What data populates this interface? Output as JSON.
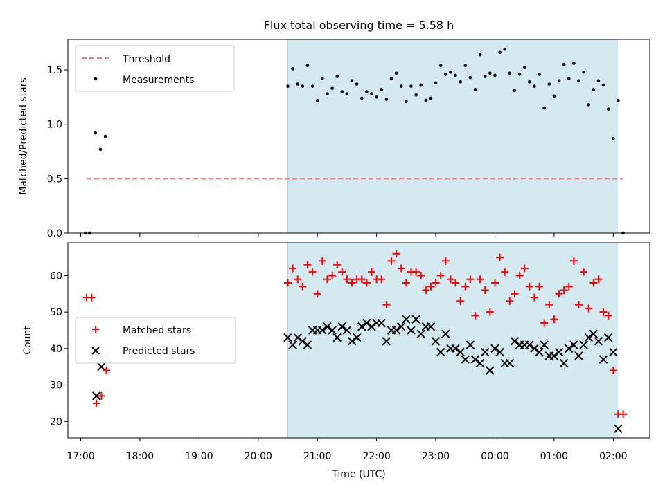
{
  "title": "Flux total observing time = 5.58 h",
  "xlabel": "Time (UTC)",
  "xticks": [
    "17:00",
    "18:00",
    "19:00",
    "20:00",
    "21:00",
    "22:00",
    "23:00",
    "00:00",
    "01:00",
    "02:00"
  ],
  "colors": {
    "shade": "#d4eaf0",
    "shade_edge": "#a9d7de",
    "threshold": "#f08080",
    "measurements": "#000000",
    "matched": "#ff0000",
    "predicted": "#000000"
  },
  "chart_data": [
    {
      "type": "scatter",
      "ylabel": "Matched/Predicted stars",
      "xlim": [
        "16:47",
        "02:37"
      ],
      "ylim": [
        0,
        1.78
      ],
      "yticks": [
        "0.0",
        "0.5",
        "1.0",
        "1.5"
      ],
      "shaded_region": [
        "20:30",
        "02:04"
      ],
      "legend": {
        "position": "top-left",
        "threshold_label": "Threshold",
        "measurements_label": "Measurements"
      },
      "threshold": {
        "y": 0.5,
        "x": [
          "17:06",
          "02:10"
        ]
      },
      "series": [
        {
          "name": "Measurements",
          "points": [
            [
              "17:05",
              0.0
            ],
            [
              "17:09",
              0.0
            ],
            [
              "17:15",
              0.92
            ],
            [
              "17:20",
              0.77
            ],
            [
              "17:25",
              0.89
            ],
            [
              "20:30",
              1.35
            ],
            [
              "20:35",
              1.51
            ],
            [
              "20:40",
              1.37
            ],
            [
              "20:45",
              1.35
            ],
            [
              "20:50",
              1.54
            ],
            [
              "20:55",
              1.35
            ],
            [
              "21:00",
              1.22
            ],
            [
              "21:05",
              1.42
            ],
            [
              "21:10",
              1.28
            ],
            [
              "21:15",
              1.33
            ],
            [
              "21:20",
              1.44
            ],
            [
              "21:25",
              1.3
            ],
            [
              "21:30",
              1.28
            ],
            [
              "21:35",
              1.4
            ],
            [
              "21:40",
              1.37
            ],
            [
              "21:45",
              1.24
            ],
            [
              "21:50",
              1.3
            ],
            [
              "21:55",
              1.28
            ],
            [
              "22:00",
              1.25
            ],
            [
              "22:05",
              1.32
            ],
            [
              "22:10",
              1.23
            ],
            [
              "22:15",
              1.42
            ],
            [
              "22:20",
              1.47
            ],
            [
              "22:25",
              1.35
            ],
            [
              "22:30",
              1.21
            ],
            [
              "22:35",
              1.35
            ],
            [
              "22:40",
              1.27
            ],
            [
              "22:45",
              1.36
            ],
            [
              "22:50",
              1.22
            ],
            [
              "22:55",
              1.24
            ],
            [
              "23:00",
              1.38
            ],
            [
              "23:05",
              1.54
            ],
            [
              "23:10",
              1.46
            ],
            [
              "23:15",
              1.48
            ],
            [
              "23:20",
              1.45
            ],
            [
              "23:25",
              1.39
            ],
            [
              "23:30",
              1.54
            ],
            [
              "23:35",
              1.43
            ],
            [
              "23:40",
              1.32
            ],
            [
              "23:45",
              1.64
            ],
            [
              "23:50",
              1.44
            ],
            [
              "23:55",
              1.47
            ],
            [
              "00:00",
              1.45
            ],
            [
              "00:05",
              1.66
            ],
            [
              "00:10",
              1.69
            ],
            [
              "00:15",
              1.47
            ],
            [
              "00:20",
              1.31
            ],
            [
              "00:25",
              1.46
            ],
            [
              "00:30",
              1.52
            ],
            [
              "00:35",
              1.39
            ],
            [
              "00:40",
              1.35
            ],
            [
              "00:45",
              1.46
            ],
            [
              "00:50",
              1.15
            ],
            [
              "00:55",
              1.37
            ],
            [
              "01:00",
              1.26
            ],
            [
              "01:05",
              1.4
            ],
            [
              "01:10",
              1.55
            ],
            [
              "01:15",
              1.42
            ],
            [
              "01:20",
              1.56
            ],
            [
              "01:25",
              1.4
            ],
            [
              "01:30",
              1.48
            ],
            [
              "01:35",
              1.18
            ],
            [
              "01:40",
              1.32
            ],
            [
              "01:45",
              1.4
            ],
            [
              "01:50",
              1.36
            ],
            [
              "01:55",
              1.14
            ],
            [
              "02:00",
              0.87
            ],
            [
              "02:05",
              1.22
            ],
            [
              "02:10",
              0.0
            ]
          ]
        }
      ]
    },
    {
      "type": "scatter",
      "ylabel": "Count",
      "xlim": [
        "16:47",
        "02:37"
      ],
      "ylim": [
        15.5,
        69
      ],
      "yticks": [
        "20",
        "30",
        "40",
        "50",
        "60"
      ],
      "shaded_region": [
        "20:30",
        "02:04"
      ],
      "legend": {
        "position": "center-left"
      },
      "series": [
        {
          "name": "Matched stars",
          "points": [
            [
              "17:06",
              54
            ],
            [
              "17:11",
              54
            ],
            [
              "17:16",
              25
            ],
            [
              "17:21",
              27
            ],
            [
              "17:26",
              34
            ],
            [
              "20:30",
              58
            ],
            [
              "20:35",
              62
            ],
            [
              "20:40",
              59
            ],
            [
              "20:45",
              57
            ],
            [
              "20:50",
              63
            ],
            [
              "20:55",
              61
            ],
            [
              "21:00",
              55
            ],
            [
              "21:05",
              64
            ],
            [
              "21:10",
              59
            ],
            [
              "21:15",
              60
            ],
            [
              "21:20",
              63
            ],
            [
              "21:25",
              61
            ],
            [
              "21:30",
              59
            ],
            [
              "21:35",
              58
            ],
            [
              "21:40",
              59
            ],
            [
              "21:45",
              59
            ],
            [
              "21:50",
              58
            ],
            [
              "21:55",
              61
            ],
            [
              "22:00",
              59
            ],
            [
              "22:05",
              59
            ],
            [
              "22:10",
              52
            ],
            [
              "22:15",
              64
            ],
            [
              "22:20",
              66
            ],
            [
              "22:25",
              62
            ],
            [
              "22:30",
              58
            ],
            [
              "22:35",
              61
            ],
            [
              "22:40",
              61
            ],
            [
              "22:45",
              60
            ],
            [
              "22:50",
              56
            ],
            [
              "22:55",
              57
            ],
            [
              "23:00",
              58
            ],
            [
              "23:05",
              60
            ],
            [
              "23:10",
              64
            ],
            [
              "23:15",
              59
            ],
            [
              "23:20",
              58
            ],
            [
              "23:25",
              53
            ],
            [
              "23:30",
              57
            ],
            [
              "23:35",
              59
            ],
            [
              "23:40",
              49
            ],
            [
              "23:45",
              59
            ],
            [
              "23:50",
              56
            ],
            [
              "23:55",
              50
            ],
            [
              "00:00",
              58
            ],
            [
              "00:05",
              65
            ],
            [
              "00:10",
              61
            ],
            [
              "00:15",
              53
            ],
            [
              "00:20",
              55
            ],
            [
              "00:25",
              60
            ],
            [
              "00:30",
              62
            ],
            [
              "00:35",
              57
            ],
            [
              "00:40",
              54
            ],
            [
              "00:45",
              57
            ],
            [
              "00:50",
              47
            ],
            [
              "00:55",
              52
            ],
            [
              "01:00",
              48
            ],
            [
              "01:05",
              55
            ],
            [
              "01:10",
              56
            ],
            [
              "01:15",
              57
            ],
            [
              "01:20",
              64
            ],
            [
              "01:25",
              52
            ],
            [
              "01:30",
              61
            ],
            [
              "01:35",
              51
            ],
            [
              "01:40",
              58
            ],
            [
              "01:45",
              59
            ],
            [
              "01:50",
              50
            ],
            [
              "01:55",
              49
            ],
            [
              "02:00",
              34
            ],
            [
              "02:05",
              22
            ],
            [
              "02:10",
              22
            ]
          ]
        },
        {
          "name": "Predicted stars",
          "points": [
            [
              "17:25",
              38
            ],
            [
              "17:16",
              27
            ],
            [
              "17:21",
              35
            ],
            [
              "20:30",
              43
            ],
            [
              "20:35",
              41
            ],
            [
              "20:40",
              43
            ],
            [
              "20:45",
              42
            ],
            [
              "20:50",
              41
            ],
            [
              "20:55",
              45
            ],
            [
              "21:00",
              45
            ],
            [
              "21:05",
              45
            ],
            [
              "21:10",
              46
            ],
            [
              "21:15",
              45
            ],
            [
              "21:20",
              43
            ],
            [
              "21:25",
              46
            ],
            [
              "21:30",
              45
            ],
            [
              "21:35",
              42
            ],
            [
              "21:40",
              43
            ],
            [
              "21:45",
              46
            ],
            [
              "21:50",
              47
            ],
            [
              "21:55",
              46
            ],
            [
              "22:00",
              47
            ],
            [
              "22:05",
              47
            ],
            [
              "22:10",
              42
            ],
            [
              "22:15",
              45
            ],
            [
              "22:20",
              45
            ],
            [
              "22:25",
              46
            ],
            [
              "22:30",
              48
            ],
            [
              "22:35",
              45
            ],
            [
              "22:40",
              48
            ],
            [
              "22:45",
              44
            ],
            [
              "22:50",
              46
            ],
            [
              "22:55",
              46
            ],
            [
              "23:00",
              42
            ],
            [
              "23:05",
              39
            ],
            [
              "23:10",
              44
            ],
            [
              "23:15",
              40
            ],
            [
              "23:20",
              40
            ],
            [
              "23:25",
              39
            ],
            [
              "23:30",
              37
            ],
            [
              "23:35",
              41
            ],
            [
              "23:40",
              37
            ],
            [
              "23:45",
              36
            ],
            [
              "23:50",
              39
            ],
            [
              "23:55",
              34
            ],
            [
              "00:00",
              40
            ],
            [
              "00:05",
              39
            ],
            [
              "00:10",
              36
            ],
            [
              "00:15",
              36
            ],
            [
              "00:20",
              42
            ],
            [
              "00:25",
              41
            ],
            [
              "00:30",
              41
            ],
            [
              "00:35",
              41
            ],
            [
              "00:40",
              40
            ],
            [
              "00:45",
              39
            ],
            [
              "00:50",
              41
            ],
            [
              "00:55",
              38
            ],
            [
              "01:00",
              38
            ],
            [
              "01:05",
              39
            ],
            [
              "01:10",
              36
            ],
            [
              "01:15",
              40
            ],
            [
              "01:20",
              41
            ],
            [
              "01:25",
              38
            ],
            [
              "01:30",
              41
            ],
            [
              "01:35",
              43
            ],
            [
              "01:40",
              44
            ],
            [
              "01:45",
              42
            ],
            [
              "01:50",
              37
            ],
            [
              "01:55",
              43
            ],
            [
              "02:00",
              39
            ],
            [
              "02:05",
              18
            ]
          ]
        }
      ]
    }
  ]
}
